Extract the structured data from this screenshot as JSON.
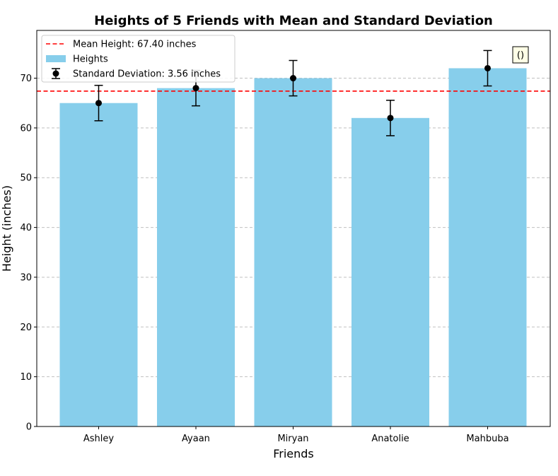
{
  "chart_data": {
    "type": "bar",
    "title": "Heights of 5 Friends with Mean and Standard Deviation",
    "xlabel": "Friends",
    "ylabel": "Height (inches)",
    "categories": [
      "Ashley",
      "Ayaan",
      "Miryan",
      "Anatolie",
      "Mahbuba"
    ],
    "values": [
      65,
      68,
      70,
      62,
      72
    ],
    "error": 3.56,
    "mean": 67.4,
    "ylim": [
      0,
      79.6
    ],
    "yticks": [
      0,
      10,
      20,
      30,
      40,
      50,
      60,
      70
    ],
    "grid": "y-dashed",
    "legend_position": "top-left",
    "legend": [
      {
        "label": "Mean Height: 67.40 inches",
        "kind": "dashed-line"
      },
      {
        "label": "Heights",
        "kind": "patch"
      },
      {
        "label": "Standard Deviation: 3.56 inches",
        "kind": "errorbar"
      }
    ],
    "annotation": "()",
    "colors": {
      "bar": "#87ceeb",
      "mean_line": "#ff0000",
      "errorbar": "#000000",
      "grid": "#c0c0c0",
      "annotation_bg": "#ffffe6"
    }
  }
}
